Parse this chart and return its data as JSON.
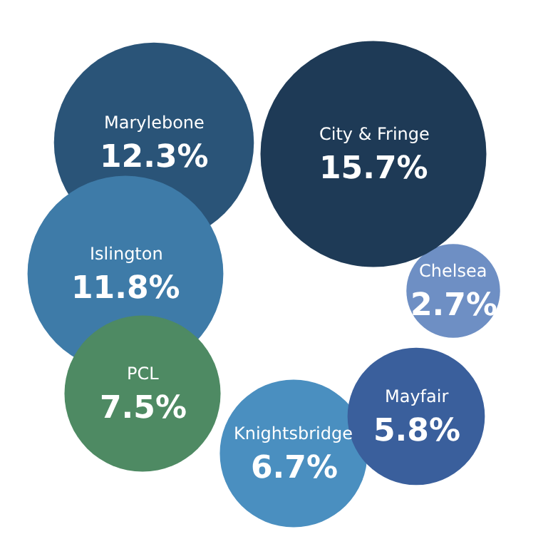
{
  "chart_data": {
    "type": "other",
    "categories": [
      "City & Fringe",
      "Marylebone",
      "Islington",
      "PCL",
      "Knightsbridge",
      "Mayfair",
      "Chelsea"
    ],
    "value_labels": [
      "15.7%",
      "12.3%",
      "11.8%",
      "7.5%",
      "6.7%",
      "5.8%",
      "2.7%"
    ],
    "values": [
      15.7,
      12.3,
      11.8,
      7.5,
      6.7,
      5.8,
      2.7
    ],
    "colors": [
      "#1e3a56",
      "#2a5478",
      "#3e7ba8",
      "#4e8a63",
      "#4a8fc0",
      "#3a5f9c",
      "#6e8fc4"
    ]
  }
}
